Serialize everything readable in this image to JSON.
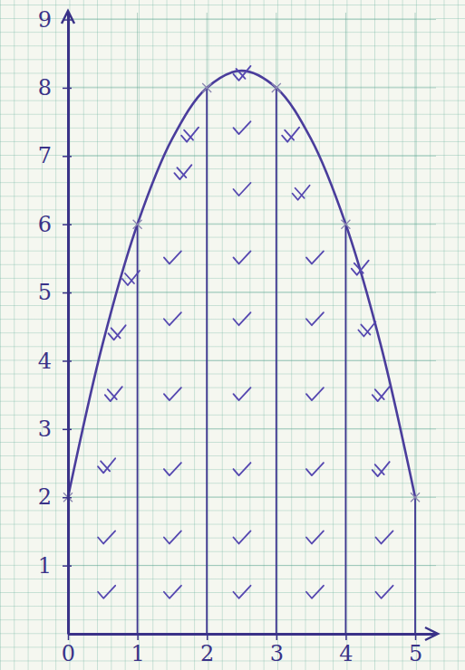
{
  "chart_data": {
    "type": "line",
    "xlim": [
      0,
      5.3
    ],
    "ylim": [
      0,
      9.1
    ],
    "xticks": [
      0,
      1,
      2,
      3,
      4,
      5
    ],
    "yticks": [
      1,
      2,
      3,
      4,
      5,
      6,
      7,
      8,
      9
    ],
    "grid": true,
    "series": [
      {
        "type": "line",
        "color": "#4a3d9c",
        "line_style": "solid",
        "x": [
          0,
          0.5,
          1,
          1.5,
          2,
          2.5,
          3,
          3.5,
          4,
          4.5,
          5
        ],
        "values": [
          2,
          4.25,
          6,
          7.25,
          8,
          8.25,
          8,
          7.25,
          6,
          4.25,
          2
        ]
      },
      {
        "type": "rule",
        "color": "#3d3590",
        "marker": "x",
        "x": [
          0,
          1,
          2,
          3,
          4,
          5
        ],
        "values": [
          2,
          6,
          8,
          8,
          6,
          2
        ]
      },
      {
        "type": "scatter",
        "color": "#5547b0",
        "marker": "check",
        "x": [
          0.55,
          0.55,
          1.5,
          1.5,
          1.5,
          1.5,
          1.5,
          1.5,
          2.5,
          2.5,
          2.5,
          2.5,
          2.5,
          2.5,
          2.5,
          2.5,
          3.55,
          3.55,
          3.55,
          3.55,
          3.55,
          3.55,
          4.55,
          4.55
        ],
        "values": [
          0.6,
          1.4,
          0.6,
          1.4,
          2.4,
          3.5,
          4.6,
          5.5,
          0.6,
          1.4,
          2.4,
          3.5,
          4.6,
          5.5,
          6.5,
          7.4,
          0.6,
          1.4,
          2.4,
          3.5,
          4.6,
          5.5,
          0.6,
          1.4
        ]
      },
      {
        "type": "scatter",
        "color": "#5547b0",
        "marker": "cross",
        "x": [
          0.55,
          0.65,
          0.7,
          0.9,
          1.65,
          1.75,
          2.5,
          3.35,
          3.2,
          4.5,
          4.5,
          4.3,
          4.2
        ],
        "values": [
          2.45,
          3.5,
          4.4,
          5.2,
          6.75,
          7.3,
          8.2,
          6.45,
          7.3,
          2.4,
          3.5,
          4.45,
          5.35
        ]
      }
    ]
  }
}
